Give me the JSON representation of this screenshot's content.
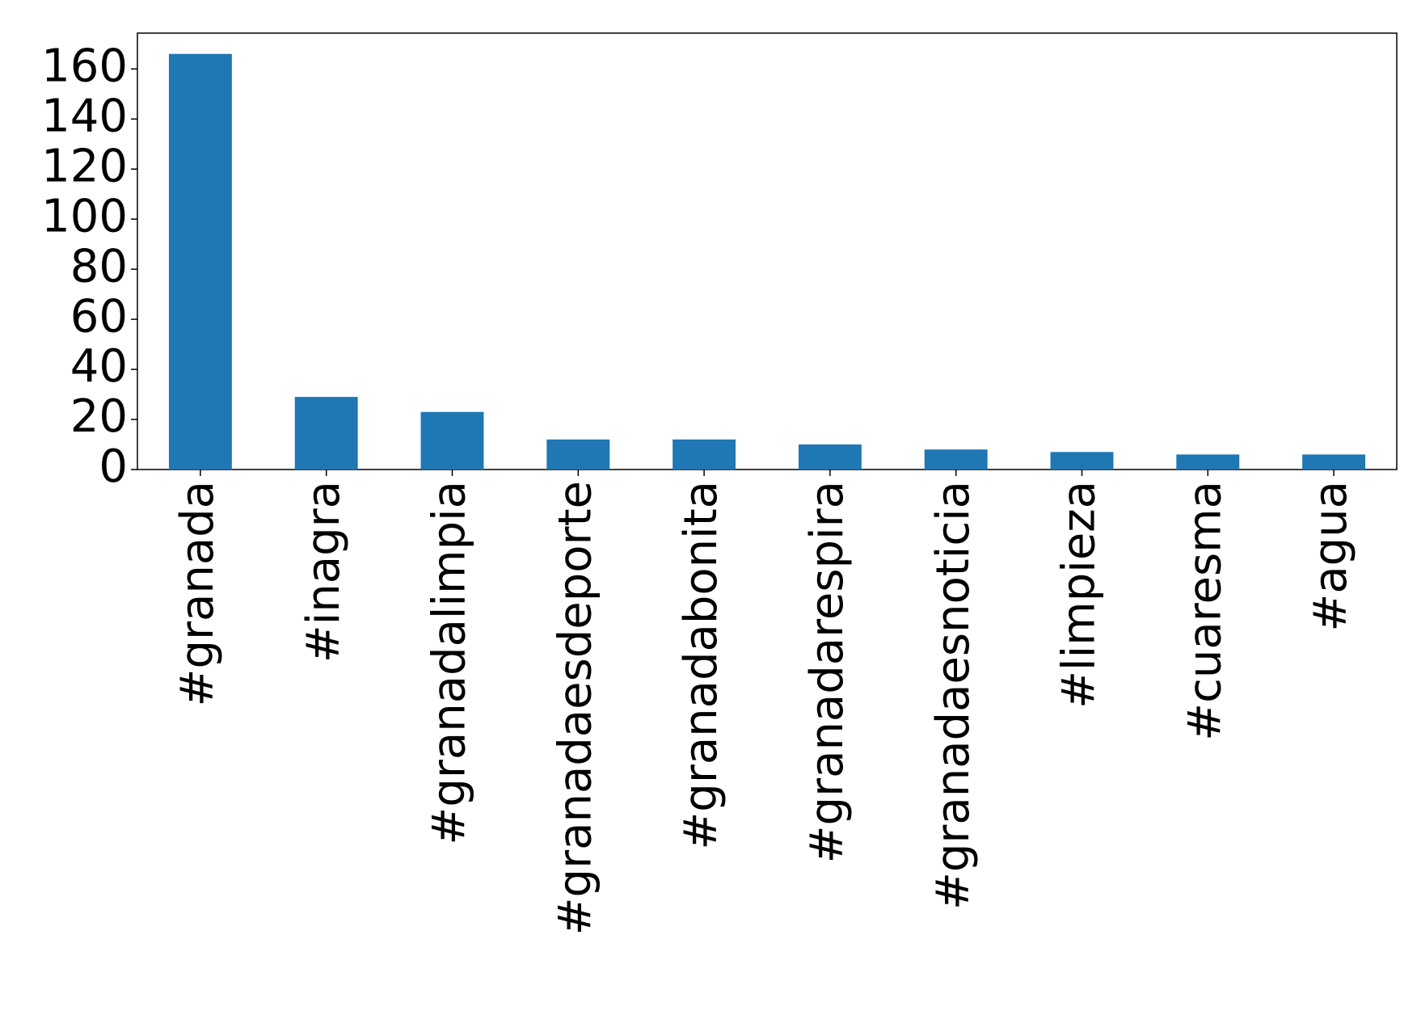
{
  "chart_data": {
    "type": "bar",
    "categories": [
      "#granada",
      "#inagra",
      "#granadalimpia",
      "#granadaesdeporte",
      "#granadabonita",
      "#granadarespira",
      "#granadaesnoticia",
      "#limpieza",
      "#cuaresma",
      "#agua"
    ],
    "values": [
      166,
      29,
      23,
      12,
      12,
      10,
      8,
      7,
      6,
      6
    ],
    "color": "#1f77b4",
    "ylim": [
      0,
      174.3
    ],
    "yticks": [
      0,
      20,
      40,
      60,
      80,
      100,
      120,
      140,
      160
    ],
    "grid": false
  }
}
